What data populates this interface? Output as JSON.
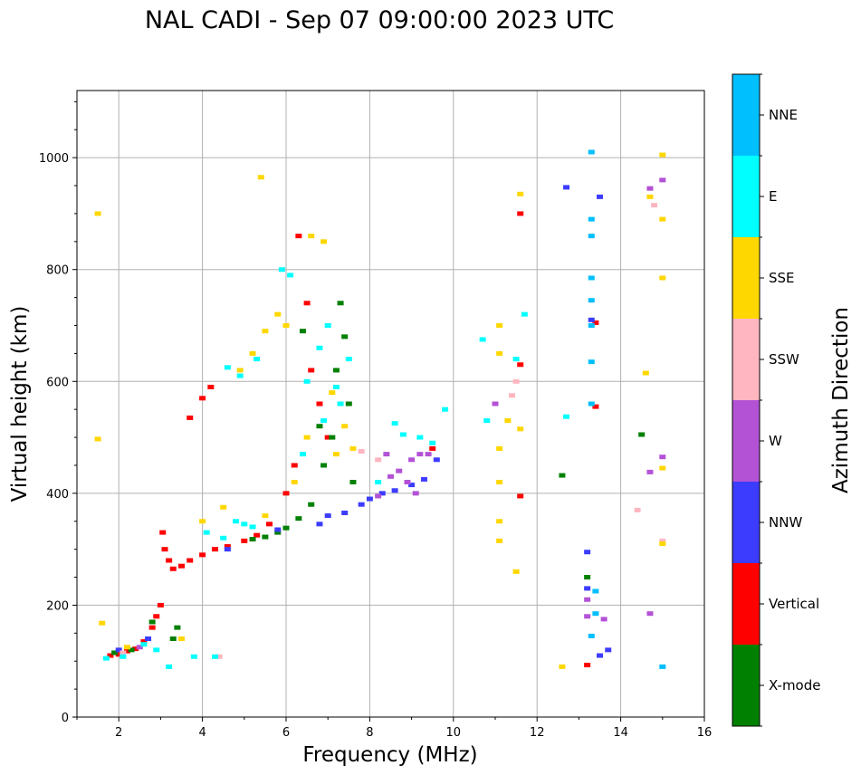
{
  "chart_data": {
    "type": "scatter",
    "title": "NAL CADI - Sep 07 09:00:00 2023 UTC",
    "xlabel": "Frequency (MHz)",
    "ylabel": "Virtual height (km)",
    "xlim": [
      1,
      16
    ],
    "ylim": [
      0,
      1120
    ],
    "xticks": [
      2,
      4,
      6,
      8,
      10,
      12,
      14,
      16
    ],
    "yticks": [
      0,
      200,
      400,
      600,
      800,
      1000
    ],
    "grid": true,
    "colorbar": {
      "title": "Azimuth Direction",
      "position": "right",
      "categories": [
        {
          "name": "X-mode",
          "color": "#008000"
        },
        {
          "name": "Vertical",
          "color": "#ff0000"
        },
        {
          "name": "NNW",
          "color": "#3c3cff"
        },
        {
          "name": "W",
          "color": "#b452d6"
        },
        {
          "name": "SSW",
          "color": "#ffb6c1"
        },
        {
          "name": "SSE",
          "color": "#ffd700"
        },
        {
          "name": "E",
          "color": "#00ffff"
        },
        {
          "name": "NNE",
          "color": "#00bfff"
        }
      ]
    },
    "series": [
      {
        "name": "Vertical",
        "points": [
          [
            1.8,
            110
          ],
          [
            2.0,
            112
          ],
          [
            2.2,
            118
          ],
          [
            2.4,
            122
          ],
          [
            2.6,
            135
          ],
          [
            2.8,
            160
          ],
          [
            2.9,
            180
          ],
          [
            3.0,
            200
          ],
          [
            3.05,
            330
          ],
          [
            3.1,
            300
          ],
          [
            3.2,
            280
          ],
          [
            3.3,
            265
          ],
          [
            3.5,
            270
          ],
          [
            3.7,
            280
          ],
          [
            4.0,
            290
          ],
          [
            4.3,
            300
          ],
          [
            4.6,
            305
          ],
          [
            5.0,
            315
          ],
          [
            5.3,
            325
          ],
          [
            5.6,
            345
          ],
          [
            6.0,
            400
          ],
          [
            6.2,
            450
          ],
          [
            6.3,
            860
          ],
          [
            6.5,
            740
          ],
          [
            6.6,
            620
          ],
          [
            6.8,
            560
          ],
          [
            4.2,
            590
          ],
          [
            4.0,
            570
          ],
          [
            3.7,
            535
          ],
          [
            7.0,
            500
          ],
          [
            9.5,
            480
          ],
          [
            11.6,
            630
          ],
          [
            11.6,
            900
          ],
          [
            11.6,
            395
          ],
          [
            13.2,
            93
          ],
          [
            13.4,
            555
          ],
          [
            13.4,
            705
          ]
        ]
      },
      {
        "name": "X-mode",
        "points": [
          [
            1.9,
            115
          ],
          [
            2.3,
            120
          ],
          [
            2.8,
            170
          ],
          [
            3.3,
            140
          ],
          [
            3.4,
            160
          ],
          [
            5.2,
            318
          ],
          [
            5.5,
            322
          ],
          [
            5.8,
            330
          ],
          [
            6.0,
            338
          ],
          [
            6.3,
            355
          ],
          [
            6.6,
            380
          ],
          [
            6.4,
            690
          ],
          [
            6.8,
            520
          ],
          [
            7.1,
            500
          ],
          [
            7.2,
            620
          ],
          [
            7.3,
            740
          ],
          [
            7.4,
            680
          ],
          [
            7.5,
            560
          ],
          [
            7.6,
            420
          ],
          [
            6.9,
            450
          ],
          [
            12.6,
            432
          ],
          [
            13.2,
            250
          ],
          [
            14.5,
            505
          ]
        ]
      },
      {
        "name": "NNW",
        "points": [
          [
            2.0,
            120
          ],
          [
            2.7,
            140
          ],
          [
            4.6,
            300
          ],
          [
            5.8,
            335
          ],
          [
            6.8,
            345
          ],
          [
            7.0,
            360
          ],
          [
            7.4,
            365
          ],
          [
            7.8,
            380
          ],
          [
            8.0,
            390
          ],
          [
            8.3,
            400
          ],
          [
            8.6,
            405
          ],
          [
            9.0,
            415
          ],
          [
            9.3,
            425
          ],
          [
            9.6,
            460
          ],
          [
            12.7,
            947
          ],
          [
            13.2,
            295
          ],
          [
            13.2,
            230
          ],
          [
            13.5,
            110
          ],
          [
            13.7,
            120
          ],
          [
            13.5,
            930
          ],
          [
            13.3,
            710
          ]
        ]
      },
      {
        "name": "W",
        "points": [
          [
            2.5,
            125
          ],
          [
            8.2,
            395
          ],
          [
            8.5,
            430
          ],
          [
            8.7,
            440
          ],
          [
            8.9,
            420
          ],
          [
            9.0,
            460
          ],
          [
            9.1,
            400
          ],
          [
            9.2,
            470
          ],
          [
            9.4,
            470
          ],
          [
            8.4,
            470
          ],
          [
            11.0,
            560
          ],
          [
            13.2,
            210
          ],
          [
            13.2,
            180
          ],
          [
            13.6,
            175
          ],
          [
            14.7,
            945
          ],
          [
            14.7,
            185
          ],
          [
            14.7,
            438
          ],
          [
            15.0,
            465
          ],
          [
            15.0,
            960
          ]
        ]
      },
      {
        "name": "SSW",
        "points": [
          [
            2.1,
            115
          ],
          [
            4.4,
            108
          ],
          [
            7.8,
            475
          ],
          [
            8.2,
            460
          ],
          [
            11.4,
            575
          ],
          [
            11.5,
            600
          ],
          [
            14.4,
            370
          ],
          [
            14.8,
            915
          ],
          [
            15.0,
            315
          ]
        ]
      },
      {
        "name": "SSE",
        "points": [
          [
            1.5,
            900
          ],
          [
            1.5,
            497
          ],
          [
            1.6,
            168
          ],
          [
            2.2,
            125
          ],
          [
            3.5,
            140
          ],
          [
            4.0,
            350
          ],
          [
            4.5,
            375
          ],
          [
            4.9,
            620
          ],
          [
            5.2,
            650
          ],
          [
            5.5,
            690
          ],
          [
            5.8,
            720
          ],
          [
            6.0,
            700
          ],
          [
            5.5,
            360
          ],
          [
            6.2,
            420
          ],
          [
            6.5,
            500
          ],
          [
            6.6,
            860
          ],
          [
            6.9,
            850
          ],
          [
            7.1,
            580
          ],
          [
            7.2,
            470
          ],
          [
            7.6,
            480
          ],
          [
            7.4,
            520
          ],
          [
            5.4,
            965
          ],
          [
            11.1,
            700
          ],
          [
            11.1,
            650
          ],
          [
            11.1,
            480
          ],
          [
            11.1,
            420
          ],
          [
            11.1,
            350
          ],
          [
            11.1,
            315
          ],
          [
            11.3,
            530
          ],
          [
            11.5,
            260
          ],
          [
            11.6,
            515
          ],
          [
            11.6,
            935
          ],
          [
            12.6,
            90
          ],
          [
            14.6,
            615
          ],
          [
            14.7,
            930
          ],
          [
            15.0,
            1005
          ],
          [
            15.0,
            890
          ],
          [
            15.0,
            785
          ],
          [
            15.0,
            445
          ],
          [
            15.0,
            310
          ]
        ]
      },
      {
        "name": "E",
        "points": [
          [
            1.7,
            105
          ],
          [
            2.1,
            108
          ],
          [
            2.6,
            130
          ],
          [
            2.9,
            120
          ],
          [
            3.2,
            90
          ],
          [
            3.8,
            108
          ],
          [
            4.3,
            108
          ],
          [
            4.1,
            330
          ],
          [
            4.5,
            320
          ],
          [
            4.8,
            350
          ],
          [
            5.0,
            345
          ],
          [
            5.2,
            340
          ],
          [
            4.6,
            625
          ],
          [
            4.9,
            610
          ],
          [
            5.3,
            640
          ],
          [
            5.9,
            800
          ],
          [
            6.1,
            790
          ],
          [
            6.4,
            470
          ],
          [
            6.5,
            600
          ],
          [
            6.8,
            660
          ],
          [
            6.9,
            530
          ],
          [
            7.0,
            700
          ],
          [
            7.2,
            590
          ],
          [
            7.3,
            560
          ],
          [
            7.5,
            640
          ],
          [
            8.2,
            420
          ],
          [
            8.6,
            525
          ],
          [
            8.8,
            505
          ],
          [
            9.2,
            500
          ],
          [
            9.5,
            490
          ],
          [
            9.8,
            550
          ],
          [
            10.7,
            675
          ],
          [
            10.8,
            530
          ],
          [
            11.5,
            640
          ],
          [
            11.7,
            720
          ],
          [
            12.7,
            537
          ]
        ]
      },
      {
        "name": "NNE",
        "points": [
          [
            13.3,
            1010
          ],
          [
            13.3,
            890
          ],
          [
            13.3,
            860
          ],
          [
            13.3,
            785
          ],
          [
            13.3,
            745
          ],
          [
            13.3,
            700
          ],
          [
            13.3,
            635
          ],
          [
            13.3,
            560
          ],
          [
            13.4,
            225
          ],
          [
            13.4,
            185
          ],
          [
            13.3,
            145
          ],
          [
            15.0,
            90
          ]
        ]
      }
    ]
  }
}
